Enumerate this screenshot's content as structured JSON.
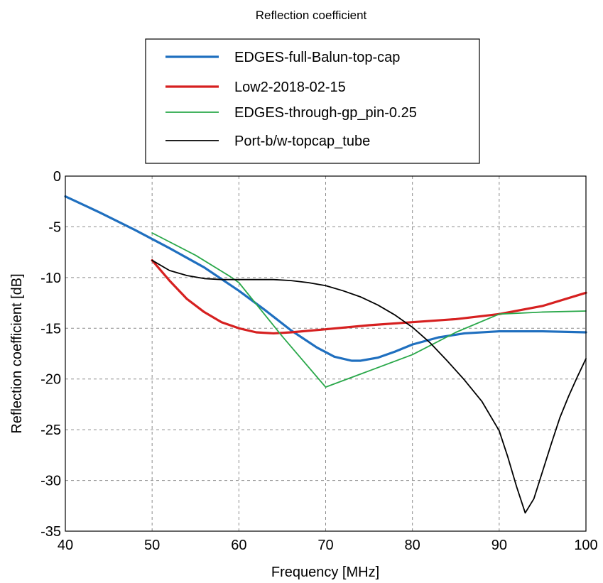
{
  "chart_data": {
    "type": "line",
    "title": "Reflection coefficient",
    "xlabel": "Frequency [MHz]",
    "ylabel": "Reflection coefficient [dB]",
    "xlim": [
      40,
      100
    ],
    "ylim": [
      -35,
      0
    ],
    "xticks": [
      40,
      50,
      60,
      70,
      80,
      90,
      100
    ],
    "yticks": [
      0,
      -5,
      -10,
      -15,
      -20,
      -25,
      -30,
      -35
    ],
    "xtick_labels": [
      "40",
      "50",
      "60",
      "70",
      "80",
      "90",
      "100"
    ],
    "ytick_labels": [
      "0",
      "-5",
      "-10",
      "-15",
      "-20",
      "-25",
      "-30",
      "-35"
    ],
    "grid": true,
    "legend_position": "top-center-outside",
    "series": [
      {
        "name": "EDGES-full-Balun-top-cap",
        "color": "#1f6fbf",
        "width": "thick",
        "x": [
          40,
          44,
          48,
          52,
          56,
          60,
          63,
          66,
          69,
          71,
          73,
          74,
          76,
          78,
          80,
          83,
          86,
          90,
          95,
          100
        ],
        "y": [
          -2.0,
          -3.6,
          -5.3,
          -7.1,
          -9.0,
          -11.3,
          -13.2,
          -15.2,
          -16.9,
          -17.8,
          -18.2,
          -18.2,
          -17.9,
          -17.3,
          -16.6,
          -15.9,
          -15.5,
          -15.3,
          -15.3,
          -15.4
        ]
      },
      {
        "name": "Low2-2018-02-15",
        "color": "#d62020",
        "width": "thick",
        "x": [
          50,
          52,
          54,
          56,
          58,
          60,
          62,
          64,
          66,
          70,
          75,
          80,
          85,
          90,
          95,
          100
        ],
        "y": [
          -8.3,
          -10.3,
          -12.1,
          -13.4,
          -14.4,
          -15.0,
          -15.4,
          -15.5,
          -15.4,
          -15.1,
          -14.7,
          -14.4,
          -14.1,
          -13.6,
          -12.8,
          -11.5
        ]
      },
      {
        "name": "EDGES-through-gp_pin-0.25",
        "color": "#2aa84a",
        "width": "thin",
        "x": [
          50,
          55,
          59,
          60,
          65,
          70,
          75,
          80,
          85,
          90,
          95,
          100
        ],
        "y": [
          -5.6,
          -7.8,
          -9.9,
          -10.5,
          -15.8,
          -20.8,
          -19.2,
          -17.6,
          -15.4,
          -13.6,
          -13.4,
          -13.3
        ]
      },
      {
        "name": "Port-b/w-topcap_tube",
        "color": "#000000",
        "width": "thin",
        "x": [
          50,
          52,
          54,
          56,
          58,
          60,
          62,
          64,
          66,
          68,
          70,
          72,
          74,
          76,
          78,
          80,
          82,
          84,
          86,
          88,
          90,
          91,
          92,
          93,
          94,
          95,
          96,
          97,
          98,
          99,
          100
        ],
        "y": [
          -8.3,
          -9.3,
          -9.8,
          -10.1,
          -10.2,
          -10.2,
          -10.2,
          -10.2,
          -10.3,
          -10.5,
          -10.8,
          -11.3,
          -11.9,
          -12.7,
          -13.7,
          -14.9,
          -16.4,
          -18.2,
          -20.1,
          -22.2,
          -25.1,
          -27.7,
          -30.6,
          -33.2,
          -31.8,
          -29.1,
          -26.4,
          -23.8,
          -21.7,
          -19.8,
          -18.0
        ]
      }
    ]
  }
}
